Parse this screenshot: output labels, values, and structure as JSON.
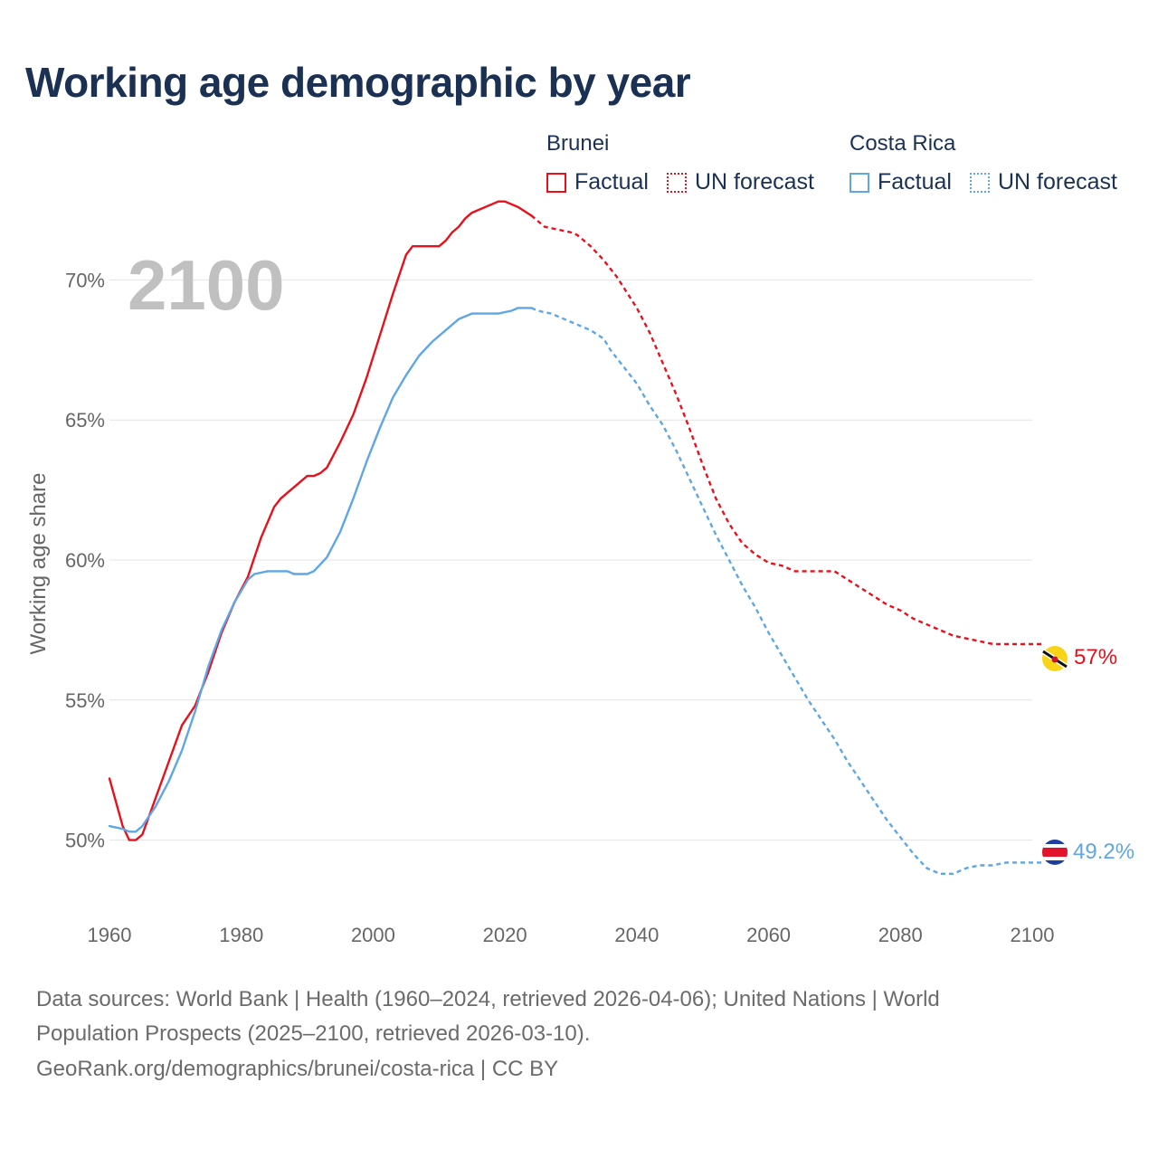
{
  "title": "Working age demographic by year",
  "legend": {
    "groups": [
      {
        "name": "Brunei",
        "factual_label": "Factual",
        "forecast_label": "UN forecast",
        "color": "#e8101a"
      },
      {
        "name": "Costa Rica",
        "factual_label": "Factual",
        "forecast_label": "UN forecast",
        "color": "#5ea6e6"
      }
    ]
  },
  "year_watermark": "2100",
  "end_labels": {
    "brunei": "57%",
    "costa_rica": "49.2%"
  },
  "footer": {
    "line1": "Data sources: World Bank | Health (1960–2024, retrieved 2026-04-06); United Nations | World",
    "line2": "Population Prospects (2025–2100, retrieved 2026-03-10).",
    "line3": "GeoRank.org/demographics/brunei/costa-rica | CC BY"
  },
  "chart_data": {
    "type": "line",
    "title": "Working age demographic by year",
    "xlabel": "",
    "ylabel": "Working age share",
    "xlim": [
      1960,
      2100
    ],
    "ylim": [
      47.5,
      72.5
    ],
    "x_ticks": [
      1960,
      1980,
      2000,
      2020,
      2040,
      2060,
      2080,
      2100
    ],
    "x_tick_labels": [
      "1960",
      "1980",
      "2000",
      "2020",
      "2040",
      "2060",
      "2080",
      "2100"
    ],
    "y_ticks": [
      50,
      55,
      60,
      65,
      70
    ],
    "y_tick_labels": [
      "50%",
      "55%",
      "60%",
      "65%",
      "70%"
    ],
    "grid": true,
    "forecast_start_year": 2024,
    "series": [
      {
        "name": "Brunei",
        "color": "#e8101a",
        "x": [
          1960,
          1962,
          1963,
          1964,
          1965,
          1967,
          1969,
          1971,
          1973,
          1975,
          1977,
          1979,
          1981,
          1983,
          1985,
          1986,
          1987,
          1989,
          1990,
          1991,
          1992,
          1993,
          1995,
          1997,
          1999,
          2001,
          2003,
          2005,
          2006,
          2007,
          2010,
          2011,
          2012,
          2013,
          2014,
          2015,
          2016,
          2018,
          2019,
          2020,
          2022,
          2024,
          2026,
          2028,
          2030,
          2031,
          2033,
          2035,
          2037,
          2040,
          2042,
          2044,
          2046,
          2048,
          2050,
          2052,
          2054,
          2056,
          2058,
          2060,
          2062,
          2064,
          2066,
          2068,
          2070,
          2072,
          2074,
          2076,
          2078,
          2080,
          2082,
          2084,
          2086,
          2088,
          2090,
          2092,
          2094,
          2096,
          2098,
          2100
        ],
        "values": [
          52.2,
          50.5,
          50.0,
          50.0,
          50.2,
          51.5,
          52.8,
          54.1,
          54.8,
          56.0,
          57.4,
          58.5,
          59.4,
          60.8,
          61.9,
          62.2,
          62.4,
          62.8,
          63.0,
          63.0,
          63.1,
          63.3,
          64.2,
          65.2,
          66.5,
          68.0,
          69.5,
          70.9,
          71.2,
          71.2,
          71.2,
          71.4,
          71.7,
          71.9,
          72.2,
          72.4,
          72.5,
          72.7,
          72.8,
          72.8,
          72.6,
          72.3,
          71.9,
          71.8,
          71.7,
          71.6,
          71.2,
          70.7,
          70.1,
          69.0,
          68.1,
          67.0,
          65.9,
          64.7,
          63.4,
          62.2,
          61.3,
          60.6,
          60.2,
          59.9,
          59.8,
          59.6,
          59.6,
          59.6,
          59.6,
          59.3,
          59.0,
          58.7,
          58.4,
          58.2,
          57.9,
          57.7,
          57.5,
          57.3,
          57.2,
          57.1,
          57.0,
          57.0,
          57.0,
          57.0
        ]
      },
      {
        "name": "Costa Rica",
        "color": "#5ea6e6",
        "x": [
          1960,
          1962,
          1963,
          1964,
          1965,
          1967,
          1969,
          1971,
          1973,
          1975,
          1977,
          1979,
          1981,
          1982,
          1984,
          1985,
          1986,
          1987,
          1988,
          1989,
          1990,
          1991,
          1993,
          1995,
          1997,
          1999,
          2001,
          2003,
          2005,
          2007,
          2009,
          2011,
          2013,
          2015,
          2017,
          2019,
          2021,
          2022,
          2023,
          2024,
          2025,
          2027,
          2029,
          2031,
          2033,
          2035,
          2036,
          2038,
          2040,
          2042,
          2044,
          2046,
          2048,
          2050,
          2052,
          2054,
          2056,
          2058,
          2060,
          2062,
          2064,
          2066,
          2068,
          2070,
          2072,
          2074,
          2076,
          2078,
          2080,
          2082,
          2084,
          2086,
          2088,
          2090,
          2092,
          2094,
          2096,
          2098,
          2100
        ],
        "values": [
          50.5,
          50.4,
          50.3,
          50.3,
          50.5,
          51.2,
          52.1,
          53.2,
          54.6,
          56.2,
          57.5,
          58.5,
          59.3,
          59.5,
          59.6,
          59.6,
          59.6,
          59.6,
          59.5,
          59.5,
          59.5,
          59.6,
          60.1,
          61.0,
          62.2,
          63.5,
          64.7,
          65.8,
          66.6,
          67.3,
          67.8,
          68.2,
          68.6,
          68.8,
          68.8,
          68.8,
          68.9,
          69.0,
          69.0,
          69.0,
          68.9,
          68.8,
          68.6,
          68.4,
          68.2,
          67.9,
          67.5,
          66.9,
          66.3,
          65.5,
          64.8,
          63.9,
          62.9,
          61.9,
          60.9,
          60.0,
          59.1,
          58.3,
          57.4,
          56.6,
          55.8,
          55.0,
          54.3,
          53.6,
          52.8,
          52.1,
          51.4,
          50.7,
          50.1,
          49.5,
          49.0,
          48.8,
          48.8,
          49.0,
          49.1,
          49.1,
          49.2,
          49.2,
          49.2
        ]
      }
    ]
  }
}
